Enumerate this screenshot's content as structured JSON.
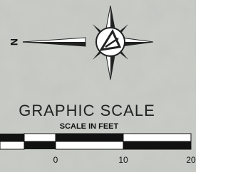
{
  "north_arrow": {
    "label": "N"
  },
  "scale": {
    "title": "GRAPHIC SCALE",
    "unit_label": "SCALE IN FEET",
    "ticks": [
      0,
      10,
      20
    ]
  }
}
